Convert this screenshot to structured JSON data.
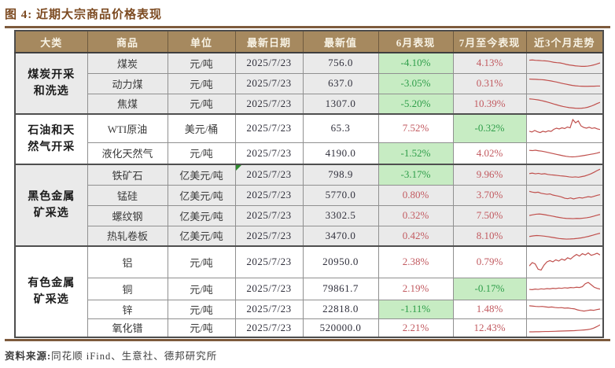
{
  "title": "图 4: 近期大宗商品价格表现",
  "footer": {
    "label": "资料来源:",
    "text": "同花顺 iFind、生意社、德邦研究所"
  },
  "colors": {
    "header_bg": "#a6895f",
    "header_text": "#f7f2e4",
    "title_text": "#7c4a21",
    "rule": "#7d5a3c",
    "negative_bg": "#c7ecc3",
    "negative_text": "#2f9e4a",
    "positive_text": "#c25a60",
    "sparkline": "#c0504d",
    "band": "#eaeaea"
  },
  "table": {
    "headers": [
      "大类",
      "商品",
      "单位",
      "最新日期",
      "最新值",
      "6月表现",
      "7月至今表现",
      "近3个月走势"
    ],
    "groups": [
      {
        "category": "煤炭开采和洗选",
        "rows": [
          {
            "name": "煤炭",
            "unit": "元/吨",
            "date": "2025/7/23",
            "value": "756.0",
            "jun": "-4.10%",
            "jul": "4.13%",
            "trend": [
              0.72,
              0.74,
              0.71,
              0.7,
              0.68,
              0.67,
              0.65,
              0.6,
              0.55,
              0.52,
              0.5,
              0.45,
              0.38,
              0.33,
              0.3,
              0.26,
              0.24,
              0.22,
              0.22,
              0.24,
              0.28,
              0.34,
              0.42,
              0.5
            ]
          },
          {
            "name": "动力煤",
            "unit": "元/吨",
            "date": "2025/7/23",
            "value": "637.0",
            "jun": "-3.05%",
            "jul": "0.31%",
            "trend": [
              0.85,
              0.84,
              0.83,
              0.81,
              0.8,
              0.78,
              0.74,
              0.7,
              0.65,
              0.6,
              0.54,
              0.48,
              0.43,
              0.38,
              0.33,
              0.3,
              0.28,
              0.27,
              0.26,
              0.26,
              0.27,
              0.27,
              0.28,
              0.28
            ]
          },
          {
            "name": "焦煤",
            "unit": "元/吨",
            "date": "2025/7/23",
            "value": "1307.0",
            "jun": "-5.20%",
            "jul": "10.39%",
            "trend": [
              0.9,
              0.88,
              0.85,
              0.81,
              0.76,
              0.7,
              0.63,
              0.56,
              0.48,
              0.41,
              0.34,
              0.28,
              0.23,
              0.19,
              0.16,
              0.14,
              0.13,
              0.14,
              0.17,
              0.22,
              0.3,
              0.4,
              0.52,
              0.62
            ]
          }
        ]
      },
      {
        "category": "石油和天然气开采",
        "rows": [
          {
            "name": "WTI原油",
            "unit": "美元/桶",
            "date": "2025/7/23",
            "value": "65.3",
            "jun": "7.52%",
            "jul": "-0.32%",
            "trend": [
              0.34,
              0.3,
              0.38,
              0.31,
              0.27,
              0.34,
              0.3,
              0.36,
              0.33,
              0.44,
              0.5,
              0.46,
              0.52,
              0.48,
              0.56,
              0.52,
              0.95,
              0.78,
              0.88,
              0.62,
              0.54,
              0.5,
              0.55,
              0.49,
              0.52,
              0.46,
              0.43
            ]
          },
          {
            "name": "液化天然气",
            "unit": "元/吨",
            "date": "2025/7/23",
            "value": "4190.0",
            "jun": "-1.52%",
            "jul": "4.02%",
            "trend": [
              0.72,
              0.7,
              0.73,
              0.69,
              0.66,
              0.62,
              0.57,
              0.52,
              0.47,
              0.42,
              0.37,
              0.32,
              0.28,
              0.25,
              0.24,
              0.25,
              0.28,
              0.31,
              0.35,
              0.39,
              0.43,
              0.47,
              0.52,
              0.58
            ]
          }
        ]
      },
      {
        "category": "黑色金属矿采选",
        "rows": [
          {
            "name": "铁矿石",
            "unit": "亿美元/吨",
            "date": "2025/7/23",
            "value": "798.9",
            "jun": "-3.17%",
            "jul": "9.96%",
            "note": true,
            "trend": [
              0.58,
              0.62,
              0.56,
              0.6,
              0.54,
              0.57,
              0.51,
              0.48,
              0.46,
              0.43,
              0.4,
              0.38,
              0.35,
              0.31,
              0.29,
              0.31,
              0.28,
              0.33,
              0.38,
              0.46,
              0.56,
              0.68,
              0.82,
              0.94
            ]
          },
          {
            "name": "锰硅",
            "unit": "亿美元/吨",
            "date": "2025/7/23",
            "value": "5770.0",
            "jun": "0.80%",
            "jul": "3.70%",
            "trend": [
              0.8,
              0.74,
              0.7,
              0.73,
              0.64,
              0.6,
              0.56,
              0.59,
              0.5,
              0.45,
              0.4,
              0.34,
              0.24,
              0.2,
              0.26,
              0.18,
              0.24,
              0.29,
              0.25,
              0.31,
              0.36,
              0.33,
              0.4,
              0.47,
              0.53
            ]
          },
          {
            "name": "螺纹钢",
            "unit": "亿美元/吨",
            "date": "2025/7/23",
            "value": "3302.5",
            "jun": "0.32%",
            "jul": "7.50%",
            "trend": [
              0.5,
              0.55,
              0.6,
              0.62,
              0.59,
              0.54,
              0.49,
              0.44,
              0.38,
              0.33,
              0.29,
              0.26,
              0.25,
              0.24,
              0.26,
              0.25,
              0.28,
              0.31,
              0.36,
              0.43,
              0.51,
              0.58
            ]
          },
          {
            "name": "热轧卷板",
            "unit": "亿美元/吨",
            "date": "2025/7/23",
            "value": "3470.0",
            "jun": "0.42%",
            "jul": "8.10%",
            "trend": [
              0.45,
              0.5,
              0.53,
              0.51,
              0.48,
              0.44,
              0.39,
              0.34,
              0.29,
              0.26,
              0.24,
              0.25,
              0.27,
              0.3,
              0.34,
              0.4,
              0.47,
              0.55,
              0.64,
              0.72
            ]
          }
        ]
      },
      {
        "category": "有色金属矿采选",
        "rows": [
          {
            "name": "铝",
            "unit": "元/吨",
            "date": "2025/7/23",
            "value": "20950.0",
            "jun": "2.38%",
            "jul": "0.79%",
            "trend": [
              0.3,
              0.46,
              0.4,
              0.14,
              0.1,
              0.34,
              0.5,
              0.56,
              0.5,
              0.6,
              0.54,
              0.64,
              0.58,
              0.7,
              0.64,
              0.76,
              0.86,
              0.78,
              0.9,
              0.84,
              0.94,
              0.82,
              0.86,
              0.92,
              0.84
            ]
          },
          {
            "name": "铜",
            "unit": "元/吨",
            "date": "2025/7/23",
            "value": "79861.7",
            "jun": "2.19%",
            "jul": "-0.17%",
            "trend": [
              0.44,
              0.42,
              0.46,
              0.44,
              0.48,
              0.46,
              0.5,
              0.48,
              0.52,
              0.5,
              0.54,
              0.52,
              0.56,
              0.54,
              0.58,
              0.56,
              0.6,
              0.58,
              0.64,
              0.86,
              0.95,
              0.78,
              0.6,
              0.52,
              0.46
            ]
          },
          {
            "name": "锌",
            "unit": "元/吨",
            "date": "2025/7/23",
            "value": "22818.0",
            "jun": "-1.11%",
            "jul": "1.48%",
            "trend": [
              0.8,
              0.77,
              0.74,
              0.72,
              0.74,
              0.7,
              0.66,
              0.69,
              0.64,
              0.61,
              0.63,
              0.58,
              0.6,
              0.55,
              0.52,
              0.42,
              0.36,
              0.31,
              0.36,
              0.41,
              0.38,
              0.45,
              0.5
            ]
          },
          {
            "name": "氧化镨",
            "unit": "元/吨",
            "date": "2025/7/23",
            "value": "520000.0",
            "jun": "2.21%",
            "jul": "12.43%",
            "trend": [
              0.14,
              0.14,
              0.15,
              0.15,
              0.16,
              0.17,
              0.17,
              0.18,
              0.19,
              0.2,
              0.21,
              0.22,
              0.23,
              0.24,
              0.25,
              0.27,
              0.29,
              0.31,
              0.34,
              0.39,
              0.48,
              0.62,
              0.78
            ]
          }
        ]
      }
    ]
  }
}
